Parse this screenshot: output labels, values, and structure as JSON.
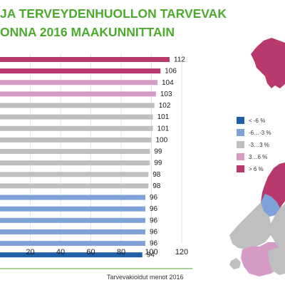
{
  "header": {
    "title_line1": "JA TERVEYDENHUOLLON TARVEVAK",
    "title_line2": "ONNA 2016 MAAKUNNITTAIN"
  },
  "legend": [
    {
      "label": "< -6 %",
      "color": "#1f5fa8"
    },
    {
      "label": "-6…-3 %",
      "color": "#7ea2d8"
    },
    {
      "label": "-3…3 %",
      "color": "#bfbfbf"
    },
    {
      "label": "3…6 %",
      "color": "#d49cc4"
    },
    {
      "label": "> 6 %",
      "color": "#b8396c"
    }
  ],
  "chart_data": {
    "type": "bar",
    "orientation": "horizontal",
    "values": [
      112,
      106,
      104,
      103,
      102,
      101,
      101,
      100,
      99,
      99,
      98,
      98,
      96,
      96,
      96,
      96,
      96,
      94
    ],
    "value_labels": [
      "112",
      "106",
      "104",
      "103",
      "102",
      "101",
      "101",
      "100",
      "99",
      "99",
      "98",
      "98",
      "96",
      "96",
      "96",
      "96",
      "96",
      "94"
    ],
    "bar_colors": [
      "#b8396c",
      "#b8396c",
      "#d49cc4",
      "#d49cc4",
      "#bfbfbf",
      "#bfbfbf",
      "#bfbfbf",
      "#bfbfbf",
      "#bfbfbf",
      "#bfbfbf",
      "#bfbfbf",
      "#bfbfbf",
      "#7ea2d8",
      "#7ea2d8",
      "#7ea2d8",
      "#7ea2d8",
      "#7ea2d8",
      "#1f5fa8"
    ],
    "x_ticks": [
      20,
      40,
      60,
      80,
      100,
      120
    ],
    "x_tick_labels": [
      "20",
      "40",
      "60",
      "80",
      "100",
      "120"
    ],
    "xlim": [
      0,
      120
    ],
    "xlabel": "Tarvevakioidut menot 2016",
    "grid": true
  }
}
